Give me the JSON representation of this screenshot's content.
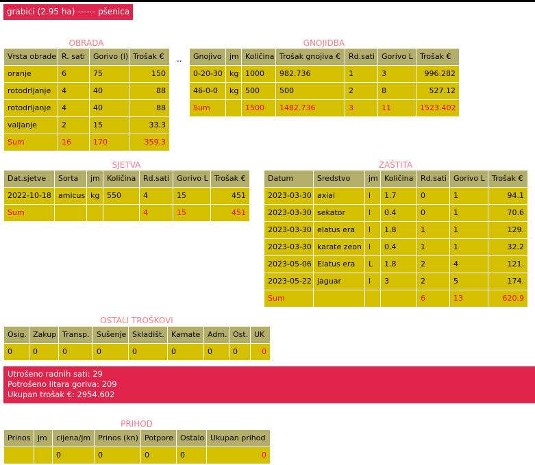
{
  "title": "grabici (2.95 ha) ------ pšenica",
  "separator": "..",
  "obrada": {
    "caption": "OBRADA",
    "headers": [
      "Vrsta obrade",
      "R. sati",
      "Gorivo (l)",
      "Trošak €"
    ],
    "rows": [
      [
        "oranje",
        "6",
        "75",
        "150"
      ],
      [
        "rotodrljanje",
        "4",
        "40",
        "88"
      ],
      [
        "rotodrljanje",
        "4",
        "40",
        "88"
      ],
      [
        "valjanje",
        "2",
        "15",
        "33.3"
      ]
    ],
    "sum": [
      "Sum",
      "16",
      "170",
      "359.3"
    ]
  },
  "gnojidba": {
    "caption": "GNOJIDBA",
    "headers": [
      "Gnojivo",
      "jm",
      "Količina",
      "Trošak gnojiva €",
      "Rd.sati",
      "Gorivo L",
      "Trošak €"
    ],
    "rows": [
      [
        "0-20-30",
        "kg",
        "1000",
        "982.736",
        "1",
        "3",
        "996.282"
      ],
      [
        "46-0-0",
        "kg",
        "500",
        "500",
        "2",
        "8",
        "527.12"
      ]
    ],
    "sum": [
      "Sum",
      "",
      "1500",
      "1482.736",
      "3",
      "11",
      "1523.402"
    ]
  },
  "sjetva": {
    "caption": "SJETVA",
    "headers": [
      "Dat.sjetve",
      "Sorta",
      "jm",
      "Količina",
      "Rd.sati",
      "Gorivo L",
      "Trošak €"
    ],
    "rows": [
      [
        "2022-10-18",
        "amicus",
        "kg",
        "550",
        "4",
        "15",
        "451"
      ]
    ],
    "sum": [
      "Sum",
      "",
      "",
      "",
      "4",
      "15",
      "451"
    ]
  },
  "zastita": {
    "caption": "ZAŠTITA",
    "headers": [
      "Datum",
      "Sredstvo",
      "jm",
      "Količina",
      "Rd.sati",
      "Gorivo L",
      "Trošak €"
    ],
    "rows": [
      [
        "2023-03-30",
        "axial",
        "l",
        "1.7",
        "0",
        "1",
        "94.1"
      ],
      [
        "2023-03-30",
        "sekator",
        "l",
        "0.4",
        "0",
        "1",
        "70.6"
      ],
      [
        "2023-03-30",
        "elatus era",
        "l",
        "1.8",
        "1",
        "1",
        "129."
      ],
      [
        "2023-03-30",
        "karate zeon",
        "l",
        "0.4",
        "1",
        "1",
        "32.2"
      ],
      [
        "2023-05-06",
        "Elatus era",
        "L",
        "1.8",
        "2",
        "4",
        "121."
      ],
      [
        "2023-05-22",
        "jaguar",
        "l",
        "3",
        "2",
        "5",
        "174."
      ]
    ],
    "sum": [
      "Sum",
      "",
      "",
      "",
      "6",
      "13",
      "620.9"
    ]
  },
  "ostali": {
    "caption": "OSTALI TROŠKOVI",
    "headers": [
      "Osig.",
      "Zakup",
      "Transp.",
      "Sušenje",
      "Skladišt.",
      "Kamate",
      "Adm.",
      "Ost.",
      "UK"
    ],
    "values": [
      "0",
      "0",
      "0",
      "0",
      "0",
      "0",
      "0",
      "0",
      "0"
    ]
  },
  "summary": {
    "line1": "Utrošeno radnih sati: 29",
    "line2": "Potrošeno litara goriva: 209",
    "line3": "Ukupan trošak €: 2954.602"
  },
  "prihod": {
    "caption": "PRIHOD",
    "headers": [
      "Prinos",
      "jm",
      "cijena/jm",
      "Prinos (kn)",
      "Potpore",
      "Ostalo",
      "Ukupan prihod"
    ],
    "values": [
      "",
      "",
      "0",
      "0",
      "0",
      "0",
      "0"
    ]
  },
  "colors": {
    "accent": "#e0254d",
    "caption": "#f37e86",
    "header_bg": "#b3ae6a",
    "cell_bg": "#d4bf00",
    "sum_text": "#ff0000"
  }
}
